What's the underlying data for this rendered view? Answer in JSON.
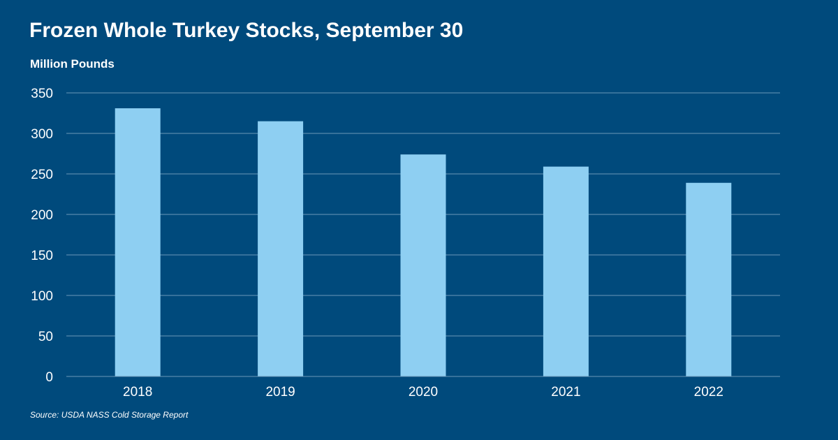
{
  "chart_data": {
    "type": "bar",
    "title": "Frozen Whole Turkey Stocks, September 30",
    "ylabel": "Million Pounds",
    "xlabel": "",
    "categories": [
      "2018",
      "2019",
      "2020",
      "2021",
      "2022"
    ],
    "values": [
      331,
      315,
      274,
      259,
      239
    ],
    "ylim": [
      0,
      350
    ],
    "yticks": [
      0,
      50,
      100,
      150,
      200,
      250,
      300,
      350
    ],
    "grid": true,
    "legend": "none"
  },
  "source": "Source: USDA NASS Cold Storage Report",
  "colors": {
    "background": "#004a7c",
    "bar": "#8ecff2",
    "gridline": "#6d98b8",
    "text": "#ffffff"
  }
}
